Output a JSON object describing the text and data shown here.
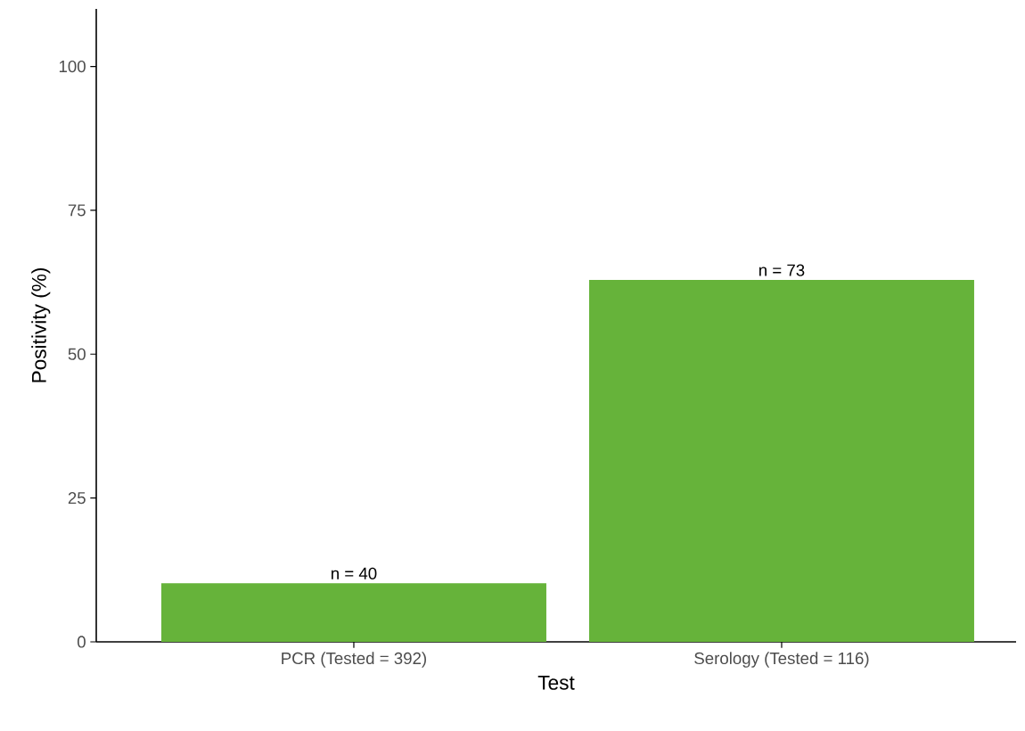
{
  "chart_data": {
    "type": "bar",
    "xlabel": "Test",
    "ylabel": "Positivity (%)",
    "categories": [
      "PCR (Tested = 392)",
      "Serology (Tested = 116)"
    ],
    "values": [
      10.2,
      62.9
    ],
    "annotations": [
      {
        "text": "n = 40",
        "x": "PCR (Tested = 392)",
        "y": 10.2
      },
      {
        "text": "n = 73",
        "x": "Serology (Tested = 116)",
        "y": 62.9
      }
    ],
    "color": "#66b33a",
    "ylim": [
      0,
      110
    ],
    "yticks": [
      0,
      25,
      50,
      75,
      100
    ],
    "grid": false
  }
}
